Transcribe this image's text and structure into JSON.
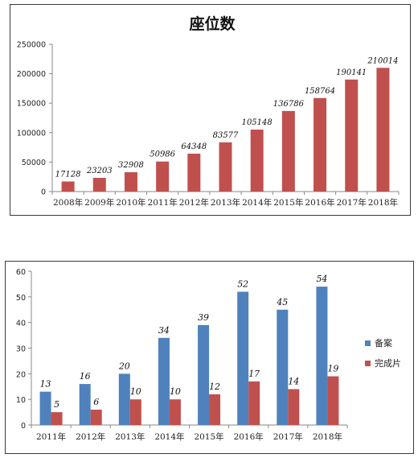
{
  "chart_data": [
    {
      "type": "bar",
      "title": "座位数",
      "categories": [
        "2008年",
        "2009年",
        "2010年",
        "2011年",
        "2012年",
        "2013年",
        "2014年",
        "2015年",
        "2016年",
        "2017年",
        "2018年"
      ],
      "series": [
        {
          "values": [
            17128,
            23203,
            32908,
            50986,
            64348,
            83577,
            105148,
            136786,
            158764,
            190141,
            210014
          ]
        }
      ],
      "ylim": [
        0,
        250000
      ],
      "yticks": [
        0,
        50000,
        100000,
        150000,
        200000,
        250000
      ],
      "grid": false,
      "colors": {
        "bar": "#c0504d"
      }
    },
    {
      "type": "bar",
      "categories": [
        "2011年",
        "2012年",
        "2013年",
        "2014年",
        "2015年",
        "2016年",
        "2017年",
        "2018年"
      ],
      "series": [
        {
          "name": "备案",
          "values": [
            13,
            16,
            20,
            34,
            39,
            52,
            45,
            54
          ]
        },
        {
          "name": "完成片",
          "values": [
            5,
            6,
            10,
            10,
            12,
            17,
            14,
            19
          ]
        }
      ],
      "ylim": [
        0,
        60
      ],
      "yticks": [
        0,
        10,
        20,
        30,
        40,
        50,
        60
      ],
      "grid": false,
      "legend": "right",
      "colors": {
        "series0": "#4f81bd",
        "series1": "#c0504d"
      }
    }
  ]
}
